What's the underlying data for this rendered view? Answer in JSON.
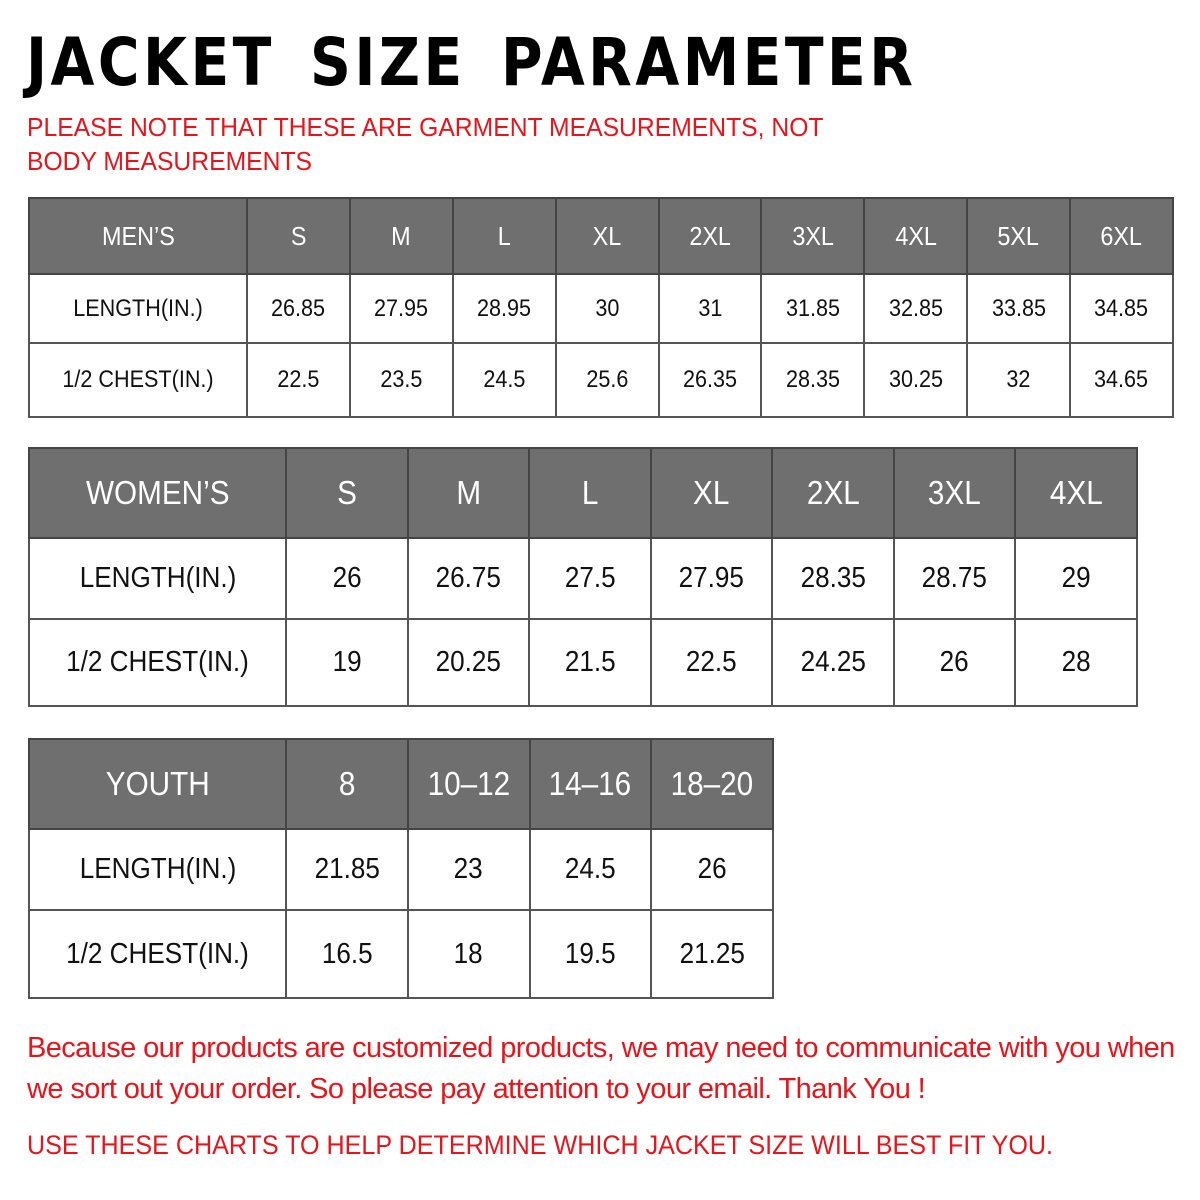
{
  "title": "JACKET SIZE PARAMETER",
  "note": "PLEASE NOTE THAT THESE ARE GARMENT MEASUREMENTS, NOT BODY MEASUREMENTS",
  "colors": {
    "header_bg": "#6f6f6f",
    "accent_red": "#e8141b"
  },
  "tables": [
    {
      "header": [
        "MEN’S",
        "S",
        "M",
        "L",
        "XL",
        "2XL",
        "3XL",
        "4XL",
        "5XL",
        "6XL"
      ],
      "rows": [
        [
          "LENGTH(IN.)",
          "26.85",
          "27.95",
          "28.95",
          "30",
          "31",
          "31.85",
          "32.85",
          "33.85",
          "34.85"
        ],
        [
          "1/2 CHEST(IN.)",
          "22.5",
          "23.5",
          "24.5",
          "25.6",
          "26.35",
          "28.35",
          "30.25",
          "32",
          "34.65"
        ]
      ]
    },
    {
      "header": [
        "WOMEN’S",
        "S",
        "M",
        "L",
        "XL",
        "2XL",
        "3XL",
        "4XL"
      ],
      "rows": [
        [
          "LENGTH(IN.)",
          "26",
          "26.75",
          "27.5",
          "27.95",
          "28.35",
          "28.75",
          "29"
        ],
        [
          "1/2 CHEST(IN.)",
          "19",
          "20.25",
          "21.5",
          "22.5",
          "24.25",
          "26",
          "28"
        ]
      ]
    },
    {
      "header": [
        "YOUTH",
        "8",
        "10–12",
        "14–16",
        "18–20"
      ],
      "rows": [
        [
          "LENGTH(IN.)",
          "21.85",
          "23",
          "24.5",
          "26"
        ],
        [
          "1/2 CHEST(IN.)",
          "16.5",
          "18",
          "19.5",
          "21.25"
        ]
      ]
    }
  ],
  "footer": "Because our products are customized products, we may need to communicate with you when we sort out your order. So please pay attention to your email. Thank You !",
  "footer2": "USE THESE CHARTS TO HELP DETERMINE WHICH JACKET SIZE WILL BEST FIT YOU."
}
